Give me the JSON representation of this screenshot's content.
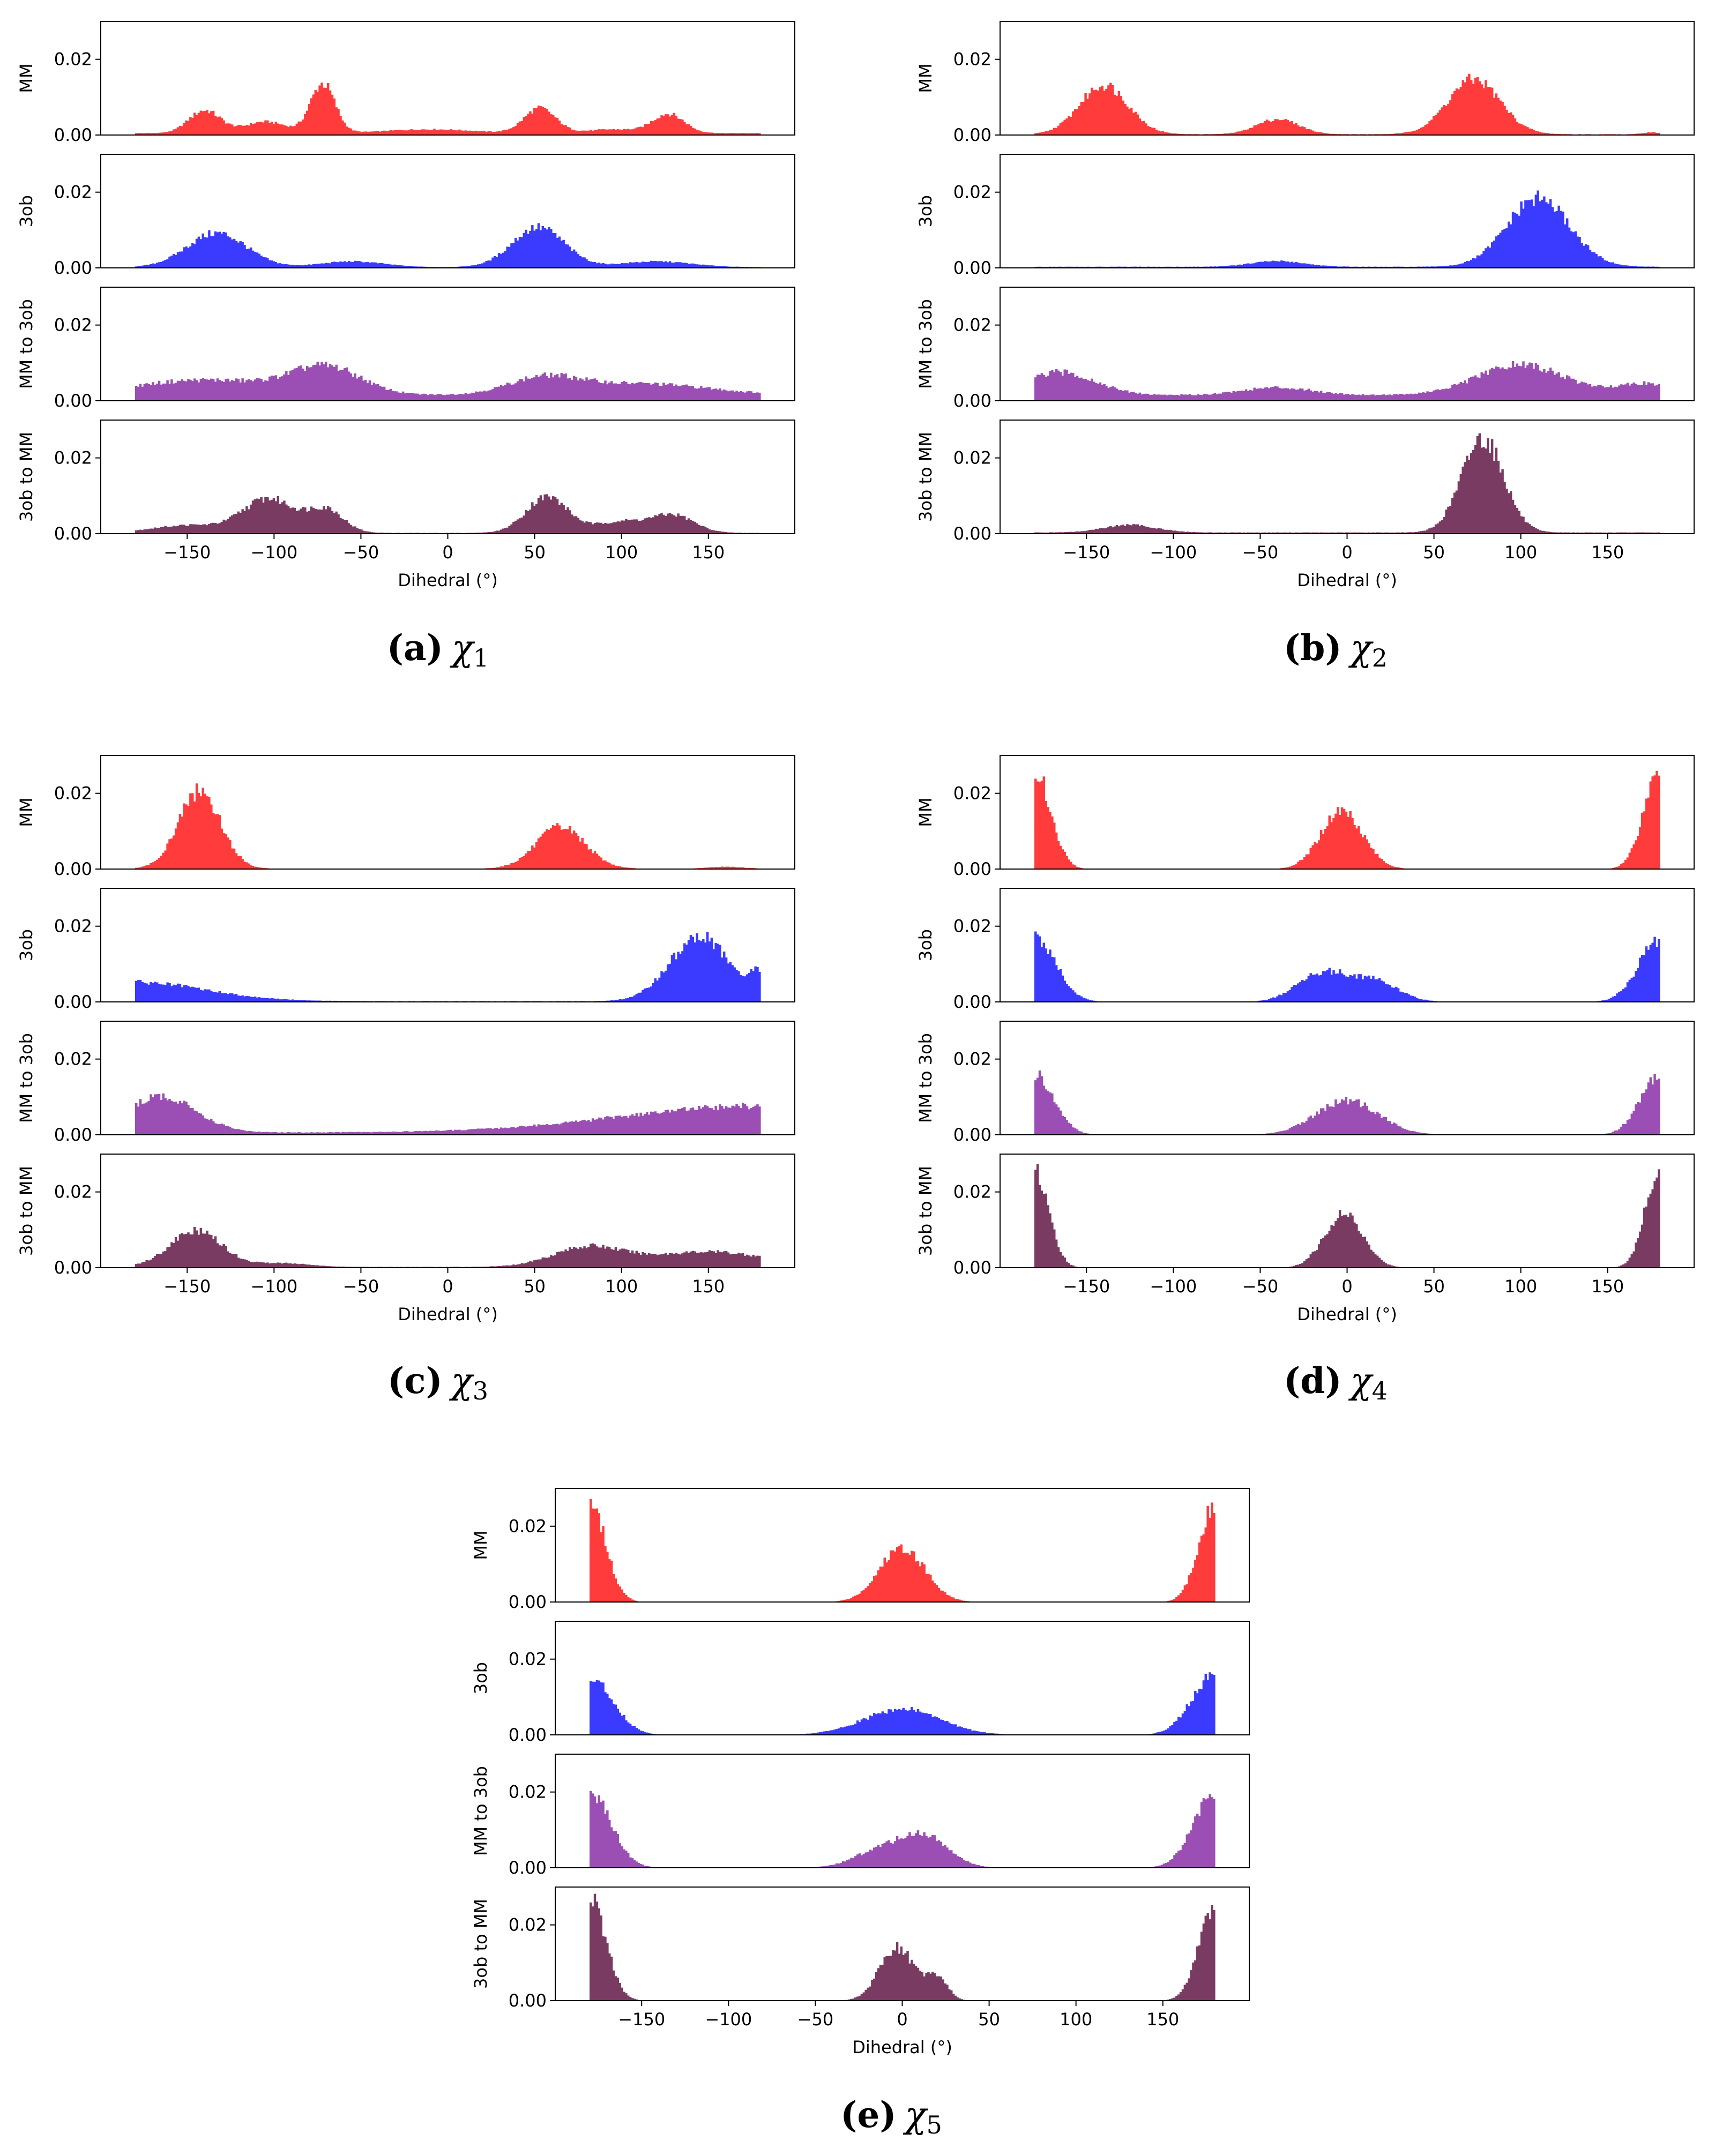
{
  "figure": {
    "shared": {
      "series_names": [
        "MM",
        "3ob",
        "MM to 3ob",
        "3ob to MM"
      ],
      "series_colors": [
        "#ff3b3b",
        "#3b3bff",
        "#9b4fb4",
        "#7a3b62"
      ],
      "y_ticks": [
        "0.00",
        "0.02"
      ],
      "x_ticks": [
        "−150",
        "−100",
        "−50",
        "0",
        "50",
        "100",
        "150"
      ],
      "xlabel": "Dihedral (°)"
    },
    "captions": [
      {
        "letter": "(a)",
        "symbol": "χ",
        "sub": "1"
      },
      {
        "letter": "(b)",
        "symbol": "χ",
        "sub": "2"
      },
      {
        "letter": "(c)",
        "symbol": "χ",
        "sub": "3"
      },
      {
        "letter": "(d)",
        "symbol": "χ",
        "sub": "4"
      },
      {
        "letter": "(e)",
        "symbol": "χ",
        "sub": "5"
      }
    ]
  },
  "chart_data": [
    {
      "type": "histogram",
      "label": "(a) χ1",
      "x_range": [
        -180,
        180
      ],
      "ylim": [
        0,
        0.03
      ],
      "xlabel": "Dihedral (°)",
      "series": [
        {
          "name": "MM",
          "color": "#ff3b3b",
          "peaks": [
            [
              -140,
              0.006,
              9
            ],
            [
              -105,
              0.003,
              12
            ],
            [
              -72,
              0.013,
              7
            ],
            [
              -10,
              0.001,
              25
            ],
            [
              53,
              0.0065,
              9
            ],
            [
              95,
              0.001,
              15
            ],
            [
              127,
              0.005,
              9
            ]
          ],
          "base": 0.0005
        },
        {
          "name": "3ob",
          "color": "#3b3bff",
          "peaks": [
            [
              -133,
              0.009,
              17
            ],
            [
              -55,
              0.0015,
              18
            ],
            [
              52,
              0.0105,
              15
            ],
            [
              120,
              0.0015,
              20
            ]
          ],
          "base": 0.0002
        },
        {
          "name": "MM to 3ob",
          "color": "#9b4fb4",
          "peaks": [
            [
              -140,
              0.004,
              40
            ],
            [
              -70,
              0.007,
              20
            ],
            [
              55,
              0.004,
              20
            ],
            [
              110,
              0.003,
              40
            ]
          ],
          "base": 0.0015
        },
        {
          "name": "3ob to MM",
          "color": "#7a3b62",
          "peaks": [
            [
              -150,
              0.002,
              20
            ],
            [
              -103,
              0.009,
              15
            ],
            [
              -70,
              0.006,
              10
            ],
            [
              57,
              0.0095,
              12
            ],
            [
              100,
              0.003,
              15
            ],
            [
              130,
              0.0045,
              12
            ]
          ],
          "base": 0.0002
        }
      ]
    },
    {
      "type": "histogram",
      "label": "(b) χ2",
      "x_range": [
        -180,
        180
      ],
      "ylim": [
        0,
        0.03
      ],
      "xlabel": "Dihedral (°)",
      "series": [
        {
          "name": "MM",
          "color": "#ff3b3b",
          "peaks": [
            [
              -140,
              0.013,
              14
            ],
            [
              -40,
              0.004,
              12
            ],
            [
              73,
              0.0145,
              15
            ],
            [
              175,
              0.0005,
              5
            ]
          ],
          "base": 0.0002
        },
        {
          "name": "3ob",
          "color": "#3b3bff",
          "peaks": [
            [
              -40,
              0.0015,
              15
            ],
            [
              110,
              0.018,
              18
            ]
          ],
          "base": 0.0003
        },
        {
          "name": "MM to 3ob",
          "color": "#9b4fb4",
          "peaks": [
            [
              -165,
              0.006,
              20
            ],
            [
              -40,
              0.002,
              20
            ],
            [
              100,
              0.008,
              25
            ],
            [
              170,
              0.003,
              15
            ]
          ],
          "base": 0.0015
        },
        {
          "name": "3ob to MM",
          "color": "#7a3b62",
          "peaks": [
            [
              -125,
              0.002,
              15
            ],
            [
              78,
              0.025,
              12
            ]
          ],
          "base": 0.0003
        }
      ]
    },
    {
      "type": "histogram",
      "label": "(c) χ3",
      "x_range": [
        -180,
        180
      ],
      "ylim": [
        0,
        0.03
      ],
      "xlabel": "Dihedral (°)",
      "series": [
        {
          "name": "MM",
          "color": "#ff3b3b",
          "peaks": [
            [
              -143,
              0.0205,
              12
            ],
            [
              65,
              0.011,
              14
            ],
            [
              160,
              0.0005,
              10
            ]
          ],
          "base": 0.0001
        },
        {
          "name": "3ob",
          "color": "#3b3bff",
          "peaks": [
            [
              -180,
              0.005,
              40
            ],
            [
              145,
              0.017,
              17
            ],
            [
              178,
              0.006,
              4
            ]
          ],
          "base": 0.0002
        },
        {
          "name": "MM to 3ob",
          "color": "#9b4fb4",
          "peaks": [
            [
              -165,
              0.0095,
              20
            ],
            [
              180,
              0.007,
              80
            ]
          ],
          "base": 0.0006
        },
        {
          "name": "3ob to MM",
          "color": "#7a3b62",
          "peaks": [
            [
              -145,
              0.0095,
              15
            ],
            [
              -95,
              0.001,
              15
            ],
            [
              80,
              0.005,
              20
            ],
            [
              150,
              0.004,
              35
            ]
          ],
          "base": 0.0002
        }
      ]
    },
    {
      "type": "histogram",
      "label": "(d) χ4",
      "x_range": [
        -180,
        180
      ],
      "ylim": [
        0,
        0.03
      ],
      "xlabel": "Dihedral (°)",
      "series": [
        {
          "name": "MM",
          "color": "#ff3b3b",
          "peaks": [
            [
              -180,
              0.0265,
              9
            ],
            [
              -3,
              0.0155,
              12
            ],
            [
              180,
              0.0265,
              9
            ]
          ],
          "base": 0.0
        },
        {
          "name": "3ob",
          "color": "#3b3bff",
          "peaks": [
            [
              -180,
              0.017,
              12
            ],
            [
              -15,
              0.0075,
              14
            ],
            [
              15,
              0.0055,
              14
            ],
            [
              180,
              0.0165,
              12
            ]
          ],
          "base": 0.0
        },
        {
          "name": "MM to 3ob",
          "color": "#9b4fb4",
          "peaks": [
            [
              -180,
              0.016,
              11
            ],
            [
              0,
              0.009,
              18
            ],
            [
              180,
              0.016,
              11
            ]
          ],
          "base": 0.0
        },
        {
          "name": "3ob to MM",
          "color": "#7a3b62",
          "peaks": [
            [
              -180,
              0.026,
              8
            ],
            [
              -2,
              0.014,
              11
            ],
            [
              180,
              0.027,
              8
            ]
          ],
          "base": 0.0
        }
      ]
    },
    {
      "type": "histogram",
      "label": "(e) χ5",
      "x_range": [
        -180,
        180
      ],
      "ylim": [
        0,
        0.03
      ],
      "xlabel": "Dihedral (°)",
      "series": [
        {
          "name": "MM",
          "color": "#ff3b3b",
          "peaks": [
            [
              -180,
              0.0265,
              9
            ],
            [
              0,
              0.0145,
              13
            ],
            [
              180,
              0.0265,
              9
            ]
          ],
          "base": 0.0
        },
        {
          "name": "3ob",
          "color": "#3b3bff",
          "peaks": [
            [
              -180,
              0.0155,
              13
            ],
            [
              0,
              0.0068,
              22
            ],
            [
              180,
              0.016,
              13
            ]
          ],
          "base": 0.0
        },
        {
          "name": "MM to 3ob",
          "color": "#9b4fb4",
          "peaks": [
            [
              -180,
              0.02,
              12
            ],
            [
              -15,
              0.004,
              14
            ],
            [
              12,
              0.0085,
              14
            ],
            [
              180,
              0.02,
              12
            ]
          ],
          "base": 0.0
        },
        {
          "name": "3ob to MM",
          "color": "#7a3b62",
          "peaks": [
            [
              -180,
              0.028,
              9
            ],
            [
              -3,
              0.014,
              10
            ],
            [
              20,
              0.006,
              6
            ],
            [
              180,
              0.025,
              9
            ]
          ],
          "base": 0.0
        }
      ]
    }
  ]
}
